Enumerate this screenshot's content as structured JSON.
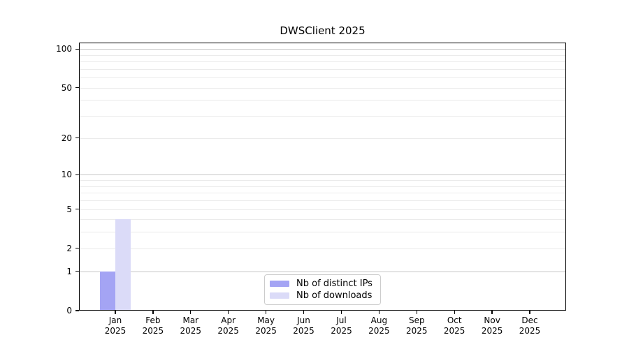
{
  "chart_data": {
    "type": "bar",
    "title": "DWSClient 2025",
    "categories": [
      "Jan",
      "Feb",
      "Mar",
      "Apr",
      "May",
      "Jun",
      "Jul",
      "Aug",
      "Sep",
      "Oct",
      "Nov",
      "Dec"
    ],
    "year_label": "2025",
    "series": [
      {
        "name": "Nb of distinct IPs",
        "color": "#a4a4f4",
        "values": [
          1,
          0,
          0,
          0,
          0,
          0,
          0,
          0,
          0,
          0,
          0,
          0
        ]
      },
      {
        "name": "Nb of downloads",
        "color": "#dbdbf8",
        "values": [
          4,
          0,
          0,
          0,
          0,
          0,
          0,
          0,
          0,
          0,
          0,
          0
        ]
      }
    ],
    "y_axis": {
      "tick_labels": [
        100,
        50,
        20,
        10,
        5,
        2,
        1,
        0
      ],
      "major_gridline_values": [
        1,
        10,
        100
      ],
      "minor_gridline_values": [
        2,
        3,
        4,
        5,
        6,
        7,
        8,
        9,
        20,
        30,
        40,
        50,
        60,
        70,
        80,
        90
      ],
      "scale": "log10(value+1)",
      "ylim": [
        0,
        112
      ]
    },
    "xlabel": "",
    "ylabel": "",
    "grid": "on",
    "legend_position": "lower center",
    "colors": {
      "major_grid": "#c6c6c6",
      "minor_grid": "#ebebeb",
      "spine": "#000000",
      "text": "#000000",
      "background": "#ffffff"
    }
  }
}
